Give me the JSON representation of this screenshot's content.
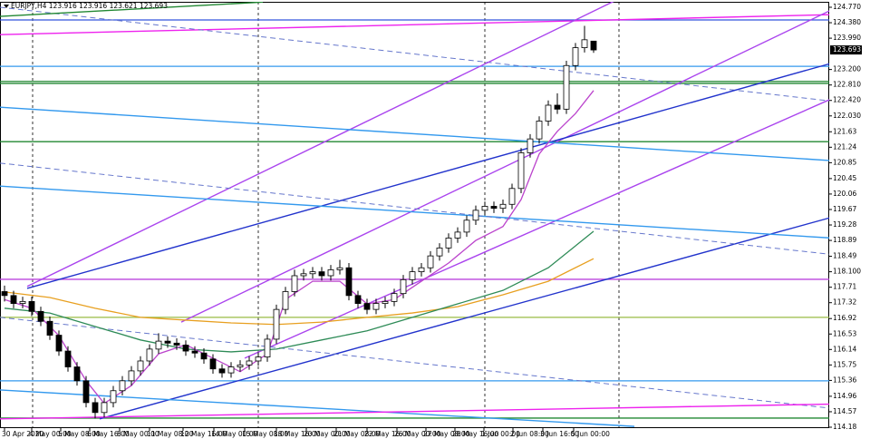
{
  "chart_data": {
    "type": "candlestick",
    "title": "EURJPY,H4  123.916 123.916 123.621 123.693",
    "xlim": [
      -0.5,
      91
    ],
    "ylim": [
      114.157,
      124.907
    ],
    "yticks": [
      {
        "value": 124.77,
        "label": "124.770"
      },
      {
        "value": 124.38,
        "label": "124.380"
      },
      {
        "value": 123.99,
        "label": "123.990"
      },
      {
        "value": 123.2,
        "label": "123.200"
      },
      {
        "value": 122.81,
        "label": "122.810"
      },
      {
        "value": 122.42,
        "label": "122.420"
      },
      {
        "value": 122.03,
        "label": "122.030"
      },
      121.63,
      121.24,
      120.85,
      120.45,
      120.06,
      119.67,
      119.28,
      118.89,
      118.49,
      {
        "value": 118.1,
        "label": "118.100"
      },
      117.71,
      117.32,
      116.92,
      116.53,
      116.14,
      115.75,
      115.36,
      114.96,
      114.57,
      114.18
    ],
    "xticks": [
      {
        "value": 0,
        "label": "30 Apr 2020"
      },
      {
        "value": 3,
        "label": "4 May 00:00"
      },
      {
        "value": 6.2,
        "label": "5 May 08:00"
      },
      {
        "value": 9.4,
        "label": "6 May 16:00"
      },
      {
        "value": 12.7,
        "label": "8 May 00:00"
      },
      {
        "value": 16,
        "label": "11 May 08:00"
      },
      {
        "value": 19.7,
        "label": "12 May 16:00"
      },
      {
        "value": 23.1,
        "label": "14 May 00:00"
      },
      {
        "value": 26.5,
        "label": "15 May 08:00"
      },
      {
        "value": 30,
        "label": "18 May 16:00"
      },
      {
        "value": 33.3,
        "label": "20 May 00:00"
      },
      {
        "value": 36.6,
        "label": "21 May 08:00"
      },
      {
        "value": 40,
        "label": "22 May 16:00"
      },
      {
        "value": 43.3,
        "label": "26 May 00:00"
      },
      {
        "value": 46.5,
        "label": "27 May 08:00"
      },
      {
        "value": 49.7,
        "label": "28 May 16:00"
      },
      {
        "value": 52.9,
        "label": "1 Jun 00:00"
      },
      {
        "value": 56.1,
        "label": "2 Jun 08:00"
      },
      {
        "value": 59.4,
        "label": "3 Jun 16:00"
      },
      {
        "value": 62.8,
        "label": "5 Jun 00:00"
      }
    ],
    "ohlc": [
      [
        117.6,
        117.75,
        117.35,
        117.5
      ],
      [
        117.5,
        117.62,
        117.18,
        117.3
      ],
      [
        117.3,
        117.47,
        117.18,
        117.35
      ],
      [
        117.35,
        117.47,
        116.98,
        117.1
      ],
      [
        117.1,
        117.22,
        116.73,
        116.85
      ],
      [
        116.85,
        116.97,
        116.38,
        116.5
      ],
      [
        116.5,
        116.62,
        115.98,
        116.1
      ],
      [
        116.1,
        116.22,
        115.58,
        115.7
      ],
      [
        115.7,
        115.82,
        115.23,
        115.35
      ],
      [
        115.35,
        115.47,
        114.68,
        114.8
      ],
      [
        114.8,
        114.92,
        114.4,
        114.55
      ],
      [
        114.55,
        114.92,
        114.43,
        114.8
      ],
      [
        114.8,
        115.22,
        114.68,
        115.1
      ],
      [
        115.1,
        115.47,
        114.98,
        115.35
      ],
      [
        115.35,
        115.72,
        115.23,
        115.6
      ],
      [
        115.6,
        115.97,
        115.48,
        115.85
      ],
      [
        115.85,
        116.27,
        115.73,
        116.15
      ],
      [
        116.15,
        116.55,
        116.03,
        116.35
      ],
      [
        116.35,
        116.47,
        116.18,
        116.3
      ],
      [
        116.3,
        116.42,
        116.13,
        116.25
      ],
      [
        116.25,
        116.37,
        115.98,
        116.1
      ],
      [
        116.1,
        116.22,
        115.93,
        116.05
      ],
      [
        116.05,
        116.17,
        115.78,
        115.9
      ],
      [
        115.9,
        116.02,
        115.53,
        115.65
      ],
      [
        115.65,
        115.77,
        115.43,
        115.55
      ],
      [
        115.55,
        115.82,
        115.43,
        115.7
      ],
      [
        115.7,
        115.87,
        115.58,
        115.75
      ],
      [
        115.75,
        115.97,
        115.63,
        115.85
      ],
      [
        115.85,
        116.07,
        115.73,
        115.95
      ],
      [
        115.95,
        116.52,
        115.83,
        116.4
      ],
      [
        116.4,
        117.27,
        116.28,
        117.15
      ],
      [
        117.15,
        117.72,
        117.03,
        117.6
      ],
      [
        117.6,
        118.15,
        117.48,
        118.0
      ],
      [
        118.0,
        118.17,
        117.88,
        118.05
      ],
      [
        118.05,
        118.22,
        117.93,
        118.1
      ],
      [
        118.1,
        118.22,
        117.88,
        118.0
      ],
      [
        118.0,
        118.27,
        117.88,
        118.15
      ],
      [
        118.15,
        118.4,
        118.03,
        118.2
      ],
      [
        118.2,
        118.32,
        117.38,
        117.5
      ],
      [
        117.5,
        117.62,
        117.18,
        117.3
      ],
      [
        117.3,
        117.42,
        117.03,
        117.15
      ],
      [
        117.15,
        117.42,
        117.03,
        117.3
      ],
      [
        117.3,
        117.47,
        117.18,
        117.35
      ],
      [
        117.35,
        117.67,
        117.23,
        117.55
      ],
      [
        117.55,
        118.02,
        117.43,
        117.9
      ],
      [
        117.9,
        118.22,
        117.78,
        118.1
      ],
      [
        118.1,
        118.32,
        117.98,
        118.2
      ],
      [
        118.2,
        118.62,
        118.08,
        118.5
      ],
      [
        118.5,
        118.82,
        118.38,
        118.7
      ],
      [
        118.7,
        119.07,
        118.58,
        118.95
      ],
      [
        118.95,
        119.22,
        118.83,
        119.1
      ],
      [
        119.1,
        119.52,
        118.98,
        119.4
      ],
      [
        119.4,
        119.77,
        119.28,
        119.65
      ],
      [
        119.65,
        119.87,
        119.53,
        119.75
      ],
      [
        119.75,
        119.87,
        119.58,
        119.7
      ],
      [
        119.7,
        119.92,
        119.58,
        119.8
      ],
      [
        119.8,
        120.32,
        119.68,
        120.2
      ],
      [
        120.2,
        121.22,
        120.08,
        121.1
      ],
      [
        121.1,
        121.57,
        120.98,
        121.45
      ],
      [
        121.45,
        122.02,
        121.33,
        121.9
      ],
      [
        121.9,
        122.42,
        121.78,
        122.3
      ],
      [
        122.3,
        122.6,
        122.08,
        122.2
      ],
      [
        122.2,
        123.42,
        122.08,
        123.3
      ],
      [
        123.3,
        123.87,
        123.18,
        123.75
      ],
      [
        123.75,
        124.3,
        123.63,
        123.95
      ],
      [
        123.916,
        123.916,
        123.621,
        123.693
      ]
    ],
    "last_price": {
      "value": 123.693,
      "label": "123.693"
    },
    "hlines": [
      {
        "value": 124.45,
        "color": "#3355dd"
      },
      {
        "value": 123.28,
        "color": "#3399ee"
      },
      {
        "value": 122.9,
        "color": "#228833"
      },
      {
        "value": 122.85,
        "color": "#228833"
      },
      {
        "value": 121.38,
        "color": "#228833"
      },
      {
        "value": 117.91,
        "color": "#bb44dd"
      },
      {
        "value": 116.95,
        "color": "#99bb44"
      },
      {
        "value": 115.35,
        "color": "#3399ee"
      },
      {
        "value": 114.41,
        "color": "#228833"
      }
    ],
    "trendlines": [
      {
        "x": [
          -0.5,
          92.5
        ],
        "y": [
          124.08,
          124.59
        ],
        "color": "#ee22ee",
        "dash": false
      },
      {
        "x": [
          -0.5,
          94.5
        ],
        "y": [
          124.77,
          122.32
        ],
        "color": "#6677cc",
        "dash": true
      },
      {
        "x": [
          -0.5,
          28.5
        ],
        "y": [
          124.54,
          124.9
        ],
        "color": "#228833",
        "dash": false
      },
      {
        "x": [
          2.5,
          67.5
        ],
        "y": [
          117.73,
          124.95
        ],
        "color": "#aa44ee",
        "dash": false
      },
      {
        "x": [
          19.5,
          92.5
        ],
        "y": [
          116.83,
          124.84
        ],
        "color": "#aa44ee",
        "dash": false
      },
      {
        "x": [
          26.5,
          95.5
        ],
        "y": [
          115.92,
          122.89
        ],
        "color": "#aa44ee",
        "dash": false
      },
      {
        "x": [
          2.5,
          95.5
        ],
        "y": [
          117.68,
          123.63
        ],
        "color": "#2233cc",
        "dash": false
      },
      {
        "x": [
          10.5,
          95.5
        ],
        "y": [
          114.39,
          119.74
        ],
        "color": "#2233cc",
        "dash": false
      },
      {
        "x": [
          -0.5,
          95.5
        ],
        "y": [
          122.25,
          120.84
        ],
        "color": "#3399ee",
        "dash": false
      },
      {
        "x": [
          -0.5,
          95.5
        ],
        "y": [
          120.26,
          118.89
        ],
        "color": "#3399ee",
        "dash": false
      },
      {
        "x": [
          -0.5,
          69.5
        ],
        "y": [
          115.12,
          114.2
        ],
        "color": "#3399ee",
        "dash": false
      },
      {
        "x": [
          -0.5,
          95.5
        ],
        "y": [
          120.84,
          118.43
        ],
        "color": "#6677cc",
        "dash": true
      },
      {
        "x": [
          -0.5,
          95.5
        ],
        "y": [
          116.95,
          114.55
        ],
        "color": "#6677cc",
        "dash": true
      },
      {
        "x": [
          -0.5,
          95.5
        ],
        "y": [
          114.39,
          114.78
        ],
        "color": "#ee22ee",
        "dash": false
      }
    ],
    "averages": [
      {
        "color": "#e8a020",
        "x": [
          0,
          5,
          10,
          15,
          20,
          25,
          30,
          35,
          40,
          45,
          50,
          55,
          60,
          65
        ],
        "values": [
          117.59,
          117.45,
          117.18,
          116.95,
          116.88,
          116.81,
          116.77,
          116.83,
          116.95,
          117.06,
          117.22,
          117.52,
          117.86,
          118.43
        ]
      },
      {
        "color": "#2e8b57",
        "x": [
          0,
          5,
          10,
          15,
          20,
          25,
          30,
          35,
          40,
          45,
          50,
          55,
          60,
          65
        ],
        "values": [
          117.18,
          117.06,
          116.72,
          116.38,
          116.15,
          116.08,
          116.15,
          116.38,
          116.61,
          116.95,
          117.29,
          117.63,
          118.2,
          119.12
        ]
      },
      {
        "color": "#bb44cc",
        "x": [
          0,
          3,
          6,
          9,
          11,
          14,
          17,
          20,
          23,
          26,
          29,
          31,
          34,
          37,
          40,
          43,
          46,
          49,
          52,
          55,
          57,
          59,
          61,
          63,
          65
        ],
        "values": [
          117.4,
          117.18,
          116.49,
          115.35,
          114.78,
          115.23,
          116.03,
          116.26,
          115.92,
          115.58,
          116.03,
          117.4,
          117.86,
          117.86,
          117.29,
          117.4,
          117.86,
          118.32,
          118.89,
          119.24,
          119.92,
          121.07,
          121.64,
          122.09,
          122.67
        ]
      }
    ]
  }
}
